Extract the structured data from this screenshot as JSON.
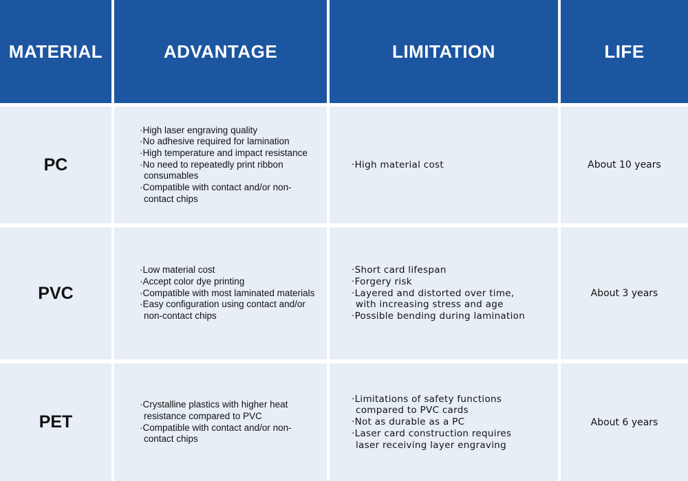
{
  "table": {
    "header": [
      "MATERIAL",
      "ADVANTAGE",
      "LIMITATION",
      "LIFE"
    ],
    "rows": [
      {
        "material": "PC",
        "advantages": [
          "·High laser engraving quality",
          "·No adhesive required for lamination",
          "·High temperature and impact resistance",
          "·No need to repeatedly print ribbon consumables",
          "·Compatible with contact and/or non-contact chips"
        ],
        "limitations": [
          "·High material cost"
        ],
        "life": "About 10 years"
      },
      {
        "material": "PVC",
        "advantages": [
          "·Low material cost",
          "·Accept color dye printing",
          "·Compatible with most laminated materials",
          "·Easy configuration using contact and/or non-contact chips"
        ],
        "limitations": [
          "·Short card lifespan",
          "·Forgery risk",
          "·Layered and distorted over time, with increasing stress and age",
          "·Possible bending during lamination"
        ],
        "life": "About 3 years"
      },
      {
        "material": "PET",
        "advantages": [
          "·Crystalline plastics with higher heat resistance compared to PVC",
          "·Compatible with contact and/or non-contact chips"
        ],
        "limitations": [
          "·Limitations of safety functions compared to PVC cards",
          "·Not as durable as a PC",
          "·Laser card construction requires laser receiving layer engraving"
        ],
        "life": "About 6 years"
      }
    ]
  }
}
